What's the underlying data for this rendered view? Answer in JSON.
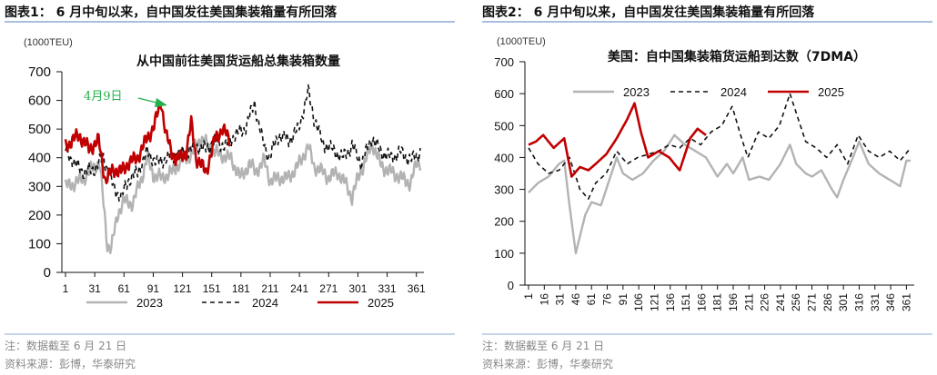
{
  "colors": {
    "s2023": "#b3b3b3",
    "s2024": "#111111",
    "s2025": "#c00000",
    "rule": "#8eaad6",
    "annot": "#22b04b"
  },
  "left": {
    "figure_title": "图表1：  6 月中旬以来，自中国发往美国集装箱量有所回落",
    "note": "注：数据截至 6 月 21 日",
    "source": "资料来源：彭博，华泰研究"
  },
  "right": {
    "figure_title": "图表2：  6 月中旬以来，自中国发往美国集装箱量有所回落",
    "note": "注：数据截至 6 月 21 日",
    "source": "资料来源：彭博，华泰研究"
  },
  "chart_data": [
    {
      "type": "line",
      "title": "从中国前往美国货运船总集装箱数量",
      "ylabel": "(1000TEU)",
      "ylim": [
        0,
        700
      ],
      "yticks": [
        "0",
        "100",
        "200",
        "300",
        "400",
        "500",
        "600",
        "700"
      ],
      "xlim": [
        1,
        365
      ],
      "xticks": [
        "1",
        "31",
        "61",
        "91",
        "121",
        "151",
        "181",
        "211",
        "241",
        "271",
        "301",
        "331",
        "361"
      ],
      "annotation": {
        "text": "4月9日",
        "x": 99,
        "y": 600
      },
      "legend": "bottom",
      "series": [
        {
          "name": "2023",
          "style": "solid",
          "points": [
            [
              1,
              300
            ],
            [
              10,
              310
            ],
            [
              20,
              330
            ],
            [
              30,
              370
            ],
            [
              36,
              380
            ],
            [
              40,
              240
            ],
            [
              44,
              95
            ],
            [
              48,
              85
            ],
            [
              55,
              210
            ],
            [
              61,
              250
            ],
            [
              70,
              240
            ],
            [
              80,
              340
            ],
            [
              85,
              400
            ],
            [
              91,
              340
            ],
            [
              100,
              330
            ],
            [
              110,
              350
            ],
            [
              120,
              390
            ],
            [
              130,
              410
            ],
            [
              140,
              470
            ],
            [
              150,
              430
            ],
            [
              160,
              410
            ],
            [
              170,
              400
            ],
            [
              181,
              330
            ],
            [
              190,
              380
            ],
            [
              196,
              350
            ],
            [
              205,
              390
            ],
            [
              211,
              320
            ],
            [
              221,
              330
            ],
            [
              230,
              330
            ],
            [
              241,
              380
            ],
            [
              250,
              440
            ],
            [
              256,
              370
            ],
            [
              265,
              350
            ],
            [
              271,
              330
            ],
            [
              280,
              350
            ],
            [
              290,
              300
            ],
            [
              295,
              260
            ],
            [
              301,
              330
            ],
            [
              310,
              400
            ],
            [
              316,
              450
            ],
            [
              325,
              370
            ],
            [
              335,
              350
            ],
            [
              345,
              330
            ],
            [
              355,
              310
            ],
            [
              361,
              380
            ],
            [
              365,
              385
            ]
          ]
        },
        {
          "name": "2024",
          "style": "dashed",
          "points": [
            [
              1,
              430
            ],
            [
              10,
              380
            ],
            [
              20,
              350
            ],
            [
              30,
              360
            ],
            [
              40,
              400
            ],
            [
              50,
              300
            ],
            [
              58,
              260
            ],
            [
              65,
              320
            ],
            [
              75,
              350
            ],
            [
              85,
              420
            ],
            [
              95,
              380
            ],
            [
              105,
              400
            ],
            [
              115,
              410
            ],
            [
              125,
              420
            ],
            [
              135,
              440
            ],
            [
              145,
              430
            ],
            [
              155,
              460
            ],
            [
              165,
              440
            ],
            [
              175,
              480
            ],
            [
              185,
              500
            ],
            [
              195,
              590
            ],
            [
              203,
              460
            ],
            [
              210,
              400
            ],
            [
              220,
              480
            ],
            [
              230,
              460
            ],
            [
              240,
              500
            ],
            [
              250,
              630
            ],
            [
              256,
              540
            ],
            [
              265,
              450
            ],
            [
              275,
              430
            ],
            [
              285,
              400
            ],
            [
              295,
              440
            ],
            [
              305,
              380
            ],
            [
              315,
              470
            ],
            [
              325,
              420
            ],
            [
              335,
              400
            ],
            [
              345,
              420
            ],
            [
              355,
              390
            ],
            [
              365,
              420
            ]
          ]
        },
        {
          "name": "2025",
          "style": "solid",
          "points": [
            [
              1,
              440
            ],
            [
              8,
              460
            ],
            [
              15,
              480
            ],
            [
              25,
              430
            ],
            [
              35,
              460
            ],
            [
              42,
              320
            ],
            [
              50,
              360
            ],
            [
              58,
              350
            ],
            [
              65,
              380
            ],
            [
              75,
              400
            ],
            [
              85,
              470
            ],
            [
              92,
              510
            ],
            [
              99,
              600
            ],
            [
              104,
              480
            ],
            [
              110,
              420
            ],
            [
              115,
              390
            ],
            [
              125,
              420
            ],
            [
              130,
              520
            ],
            [
              135,
              400
            ],
            [
              145,
              350
            ],
            [
              155,
              470
            ],
            [
              162,
              500
            ],
            [
              170,
              460
            ]
          ]
        }
      ]
    },
    {
      "type": "line",
      "title": "美国：自中国集装箱货运船到达数（7DMA）",
      "ylabel": "(1000TEU)",
      "ylim": [
        0,
        700
      ],
      "yticks": [
        "0",
        "100",
        "200",
        "300",
        "400",
        "500",
        "600",
        "700"
      ],
      "xlim": [
        1,
        365
      ],
      "xticks": [
        "1",
        "16",
        "31",
        "46",
        "61",
        "76",
        "91",
        "106",
        "121",
        "136",
        "151",
        "166",
        "181",
        "196",
        "211",
        "226",
        "241",
        "256",
        "271",
        "286",
        "301",
        "316",
        "331",
        "346",
        "361"
      ],
      "legend": "top",
      "series": [
        {
          "name": "2023",
          "style": "solid",
          "points": [
            [
              1,
              290
            ],
            [
              10,
              320
            ],
            [
              20,
              340
            ],
            [
              30,
              380
            ],
            [
              35,
              390
            ],
            [
              40,
              250
            ],
            [
              46,
              100
            ],
            [
              55,
              220
            ],
            [
              61,
              260
            ],
            [
              70,
              250
            ],
            [
              80,
              350
            ],
            [
              85,
              400
            ],
            [
              91,
              350
            ],
            [
              100,
              330
            ],
            [
              110,
              350
            ],
            [
              120,
              390
            ],
            [
              130,
              420
            ],
            [
              140,
              470
            ],
            [
              150,
              440
            ],
            [
              160,
              420
            ],
            [
              170,
              400
            ],
            [
              181,
              340
            ],
            [
              190,
              380
            ],
            [
              196,
              350
            ],
            [
              205,
              400
            ],
            [
              211,
              330
            ],
            [
              221,
              340
            ],
            [
              230,
              330
            ],
            [
              241,
              380
            ],
            [
              250,
              440
            ],
            [
              256,
              380
            ],
            [
              265,
              350
            ],
            [
              271,
              340
            ],
            [
              280,
              360
            ],
            [
              290,
              300
            ],
            [
              295,
              275
            ],
            [
              301,
              330
            ],
            [
              310,
              400
            ],
            [
              316,
              450
            ],
            [
              325,
              380
            ],
            [
              335,
              350
            ],
            [
              345,
              330
            ],
            [
              355,
              310
            ],
            [
              361,
              390
            ],
            [
              365,
              390
            ]
          ]
        },
        {
          "name": "2024",
          "style": "dashed",
          "points": [
            [
              1,
              430
            ],
            [
              10,
              380
            ],
            [
              20,
              350
            ],
            [
              30,
              360
            ],
            [
              40,
              400
            ],
            [
              50,
              300
            ],
            [
              58,
              270
            ],
            [
              65,
              320
            ],
            [
              75,
              350
            ],
            [
              85,
              420
            ],
            [
              95,
              380
            ],
            [
              105,
              400
            ],
            [
              115,
              410
            ],
            [
              125,
              420
            ],
            [
              135,
              440
            ],
            [
              145,
              430
            ],
            [
              155,
              460
            ],
            [
              165,
              440
            ],
            [
              175,
              480
            ],
            [
              185,
              500
            ],
            [
              195,
              560
            ],
            [
              203,
              470
            ],
            [
              210,
              400
            ],
            [
              220,
              480
            ],
            [
              230,
              460
            ],
            [
              240,
              500
            ],
            [
              250,
              600
            ],
            [
              256,
              540
            ],
            [
              265,
              450
            ],
            [
              275,
              430
            ],
            [
              285,
              400
            ],
            [
              295,
              440
            ],
            [
              305,
              380
            ],
            [
              315,
              470
            ],
            [
              325,
              420
            ],
            [
              335,
              400
            ],
            [
              345,
              420
            ],
            [
              355,
              390
            ],
            [
              365,
              430
            ]
          ]
        },
        {
          "name": "2025",
          "style": "solid",
          "points": [
            [
              1,
              440
            ],
            [
              8,
              450
            ],
            [
              15,
              470
            ],
            [
              25,
              430
            ],
            [
              35,
              460
            ],
            [
              42,
              340
            ],
            [
              50,
              370
            ],
            [
              58,
              360
            ],
            [
              65,
              380
            ],
            [
              75,
              410
            ],
            [
              85,
              460
            ],
            [
              95,
              520
            ],
            [
              102,
              570
            ],
            [
              108,
              480
            ],
            [
              115,
              400
            ],
            [
              125,
              420
            ],
            [
              135,
              400
            ],
            [
              145,
              360
            ],
            [
              155,
              460
            ],
            [
              162,
              490
            ],
            [
              170,
              470
            ]
          ]
        }
      ]
    }
  ]
}
